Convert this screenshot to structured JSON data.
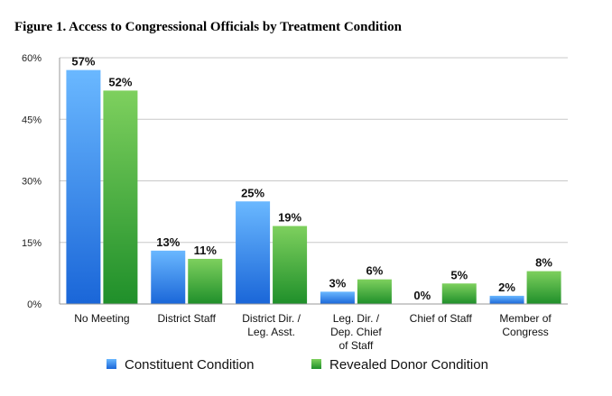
{
  "chart_data": {
    "type": "bar",
    "title": "Figure 1. Access to Congressional Officials by Treatment Condition",
    "categories": [
      [
        "No Meeting"
      ],
      [
        "District Staff"
      ],
      [
        "District Dir. /",
        "Leg. Asst."
      ],
      [
        "Leg. Dir. /",
        "Dep. Chief",
        "of Staff"
      ],
      [
        "Chief of Staff"
      ],
      [
        "Member of",
        "Congress"
      ]
    ],
    "series": [
      {
        "name": "Constituent Condition",
        "values": [
          57,
          13,
          25,
          3,
          0,
          2
        ],
        "color": "#2f80e6"
      },
      {
        "name": "Revealed Donor Condition",
        "values": [
          52,
          11,
          19,
          6,
          5,
          8
        ],
        "color": "#3aa53a"
      }
    ],
    "data_labels": [
      [
        "57%",
        "13%",
        "25%",
        "3%",
        "0%",
        "2%"
      ],
      [
        "52%",
        "11%",
        "19%",
        "6%",
        "5%",
        "8%"
      ]
    ],
    "ylim": [
      0,
      60
    ],
    "yticks": [
      0,
      15,
      30,
      45,
      60
    ],
    "ytick_labels": [
      "0%",
      "15%",
      "30%",
      "45%",
      "60%"
    ],
    "grid": true,
    "legend_position": "bottom"
  }
}
